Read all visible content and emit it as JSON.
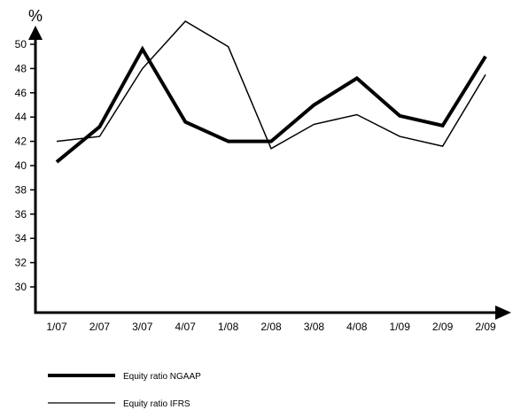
{
  "chart_data": {
    "type": "line",
    "title": "",
    "xlabel": "",
    "ylabel": "%",
    "categories": [
      "1/07",
      "2/07",
      "3/07",
      "4/07",
      "1/08",
      "2/08",
      "3/08",
      "4/08",
      "1/09",
      "2/09",
      "2/09"
    ],
    "ylim": [
      27.5,
      52
    ],
    "yticks": [
      30,
      32,
      34,
      36,
      38,
      40,
      42,
      44,
      46,
      48,
      50
    ],
    "grid": false,
    "legend_position": "bottom-left",
    "series": [
      {
        "name": "Equity ratio NGAAP",
        "color": "#000000",
        "style": "thick",
        "values": [
          40.3,
          43.2,
          49.6,
          43.6,
          42.0,
          42.0,
          45.0,
          47.2,
          44.1,
          43.3,
          49.0
        ]
      },
      {
        "name": "Equity ratio IFRS",
        "color": "#000000",
        "style": "thin",
        "values": [
          42.0,
          42.4,
          48.0,
          51.9,
          49.8,
          41.4,
          43.4,
          44.2,
          42.4,
          41.6,
          47.5
        ]
      }
    ]
  }
}
